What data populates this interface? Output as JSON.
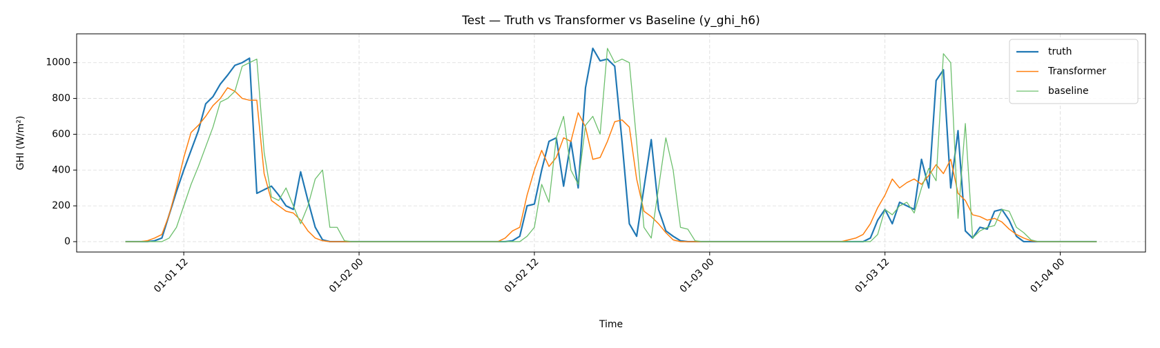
{
  "chart_data": {
    "type": "line",
    "title": "Test — Truth vs Transformer vs Baseline (y_ghi_h6)",
    "xlabel": "Time",
    "ylabel": "GHI (W/m²)",
    "x": [
      "01-01 08:00",
      "01-01 08:30",
      "01-01 09:00",
      "01-01 09:30",
      "01-01 10:00",
      "01-01 10:30",
      "01-01 11:00",
      "01-01 11:30",
      "01-01 12:00",
      "01-01 12:30",
      "01-01 13:00",
      "01-01 13:30",
      "01-01 14:00",
      "01-01 14:30",
      "01-01 15:00",
      "01-01 15:30",
      "01-01 16:00",
      "01-01 16:30",
      "01-01 17:00",
      "01-01 17:30",
      "01-01 18:00",
      "01-01 18:30",
      "01-01 19:00",
      "01-01 19:30",
      "01-01 20:00",
      "01-01 20:30",
      "01-01 21:00",
      "01-01 21:30",
      "01-01 22:00",
      "01-01 22:30",
      "01-01 23:00",
      "01-01 23:30",
      "01-02 00:00",
      "01-02 00:30",
      "01-02 01:00",
      "01-02 01:30",
      "01-02 02:00",
      "01-02 02:30",
      "01-02 03:00",
      "01-02 03:30",
      "01-02 04:00",
      "01-02 04:30",
      "01-02 05:00",
      "01-02 05:30",
      "01-02 06:00",
      "01-02 06:30",
      "01-02 07:00",
      "01-02 07:30",
      "01-02 08:00",
      "01-02 08:30",
      "01-02 09:00",
      "01-02 09:30",
      "01-02 10:00",
      "01-02 10:30",
      "01-02 11:00",
      "01-02 11:30",
      "01-02 12:00",
      "01-02 12:30",
      "01-02 13:00",
      "01-02 13:30",
      "01-02 14:00",
      "01-02 14:30",
      "01-02 15:00",
      "01-02 15:30",
      "01-02 16:00",
      "01-02 16:30",
      "01-02 17:00",
      "01-02 17:30",
      "01-02 18:00",
      "01-02 18:30",
      "01-02 19:00",
      "01-02 19:30",
      "01-02 20:00",
      "01-02 20:30",
      "01-02 21:00",
      "01-02 21:30",
      "01-02 22:00",
      "01-02 22:30",
      "01-02 23:00",
      "01-02 23:30",
      "01-03 00:00",
      "01-03 00:30",
      "01-03 01:00",
      "01-03 01:30",
      "01-03 02:00",
      "01-03 02:30",
      "01-03 03:00",
      "01-03 03:30",
      "01-03 04:00",
      "01-03 04:30",
      "01-03 05:00",
      "01-03 05:30",
      "01-03 06:00",
      "01-03 06:30",
      "01-03 07:00",
      "01-03 07:30",
      "01-03 08:00",
      "01-03 08:30",
      "01-03 09:00",
      "01-03 09:30",
      "01-03 10:00",
      "01-03 10:30",
      "01-03 11:00",
      "01-03 11:30",
      "01-03 12:00",
      "01-03 12:30",
      "01-03 13:00",
      "01-03 13:30",
      "01-03 14:00",
      "01-03 14:30",
      "01-03 15:00",
      "01-03 15:30",
      "01-03 16:00",
      "01-03 16:30",
      "01-03 17:00",
      "01-03 17:30",
      "01-03 18:00",
      "01-03 18:30",
      "01-03 19:00",
      "01-03 19:30",
      "01-03 20:00",
      "01-03 20:30",
      "01-03 21:00",
      "01-03 21:30",
      "01-03 22:00",
      "01-03 22:30",
      "01-03 23:00",
      "01-03 23:30",
      "01-04 00:00",
      "01-04 00:30",
      "01-04 01:00",
      "01-04 01:30",
      "01-04 02:00",
      "01-04 02:30"
    ],
    "series": [
      {
        "name": "truth",
        "color": "#1f77b4",
        "width": 2.2,
        "values": [
          0,
          0,
          0,
          0,
          5,
          20,
          150,
          280,
          400,
          510,
          620,
          770,
          810,
          880,
          930,
          985,
          1000,
          1025,
          270,
          290,
          310,
          260,
          200,
          180,
          390,
          230,
          80,
          10,
          0,
          0,
          0,
          0,
          0,
          0,
          0,
          0,
          0,
          0,
          0,
          0,
          0,
          0,
          0,
          0,
          0,
          0,
          0,
          0,
          0,
          0,
          0,
          0,
          0,
          5,
          30,
          200,
          210,
          400,
          560,
          580,
          310,
          560,
          300,
          860,
          1080,
          1010,
          1020,
          980,
          560,
          100,
          30,
          300,
          570,
          180,
          60,
          30,
          5,
          0,
          0,
          0,
          0,
          0,
          0,
          0,
          0,
          0,
          0,
          0,
          0,
          0,
          0,
          0,
          0,
          0,
          0,
          0,
          0,
          0,
          0,
          0,
          0,
          0,
          20,
          120,
          180,
          100,
          220,
          200,
          180,
          460,
          300,
          900,
          960,
          300,
          620,
          60,
          20,
          80,
          70,
          170,
          180,
          120,
          30,
          0,
          0,
          0,
          0,
          0,
          0,
          0,
          0,
          0,
          0,
          0
        ]
      },
      {
        "name": "Transformer",
        "color": "#ff7f0e",
        "width": 1.5,
        "values": [
          0,
          0,
          0,
          5,
          20,
          40,
          150,
          300,
          470,
          610,
          650,
          700,
          760,
          800,
          860,
          840,
          800,
          790,
          790,
          380,
          230,
          200,
          170,
          160,
          120,
          60,
          20,
          5,
          0,
          0,
          0,
          0,
          0,
          0,
          0,
          0,
          0,
          0,
          0,
          0,
          0,
          0,
          0,
          0,
          0,
          0,
          0,
          0,
          0,
          0,
          0,
          0,
          20,
          60,
          80,
          260,
          400,
          510,
          420,
          470,
          580,
          560,
          720,
          640,
          460,
          470,
          560,
          670,
          680,
          640,
          350,
          170,
          140,
          100,
          50,
          10,
          0,
          0,
          0,
          0,
          0,
          0,
          0,
          0,
          0,
          0,
          0,
          0,
          0,
          0,
          0,
          0,
          0,
          0,
          0,
          0,
          0,
          0,
          0,
          10,
          20,
          40,
          100,
          190,
          260,
          350,
          300,
          330,
          350,
          320,
          370,
          430,
          380,
          460,
          270,
          230,
          150,
          140,
          120,
          130,
          110,
          70,
          40,
          20,
          5,
          0,
          0,
          0,
          0,
          0,
          0,
          0,
          0,
          0
        ]
      },
      {
        "name": "baseline",
        "color": "#6cbf6c",
        "width": 1.3,
        "values": [
          0,
          0,
          0,
          0,
          0,
          0,
          20,
          80,
          200,
          320,
          420,
          530,
          640,
          780,
          800,
          840,
          980,
          1000,
          1020,
          500,
          250,
          230,
          300,
          200,
          100,
          200,
          350,
          400,
          80,
          80,
          5,
          0,
          0,
          0,
          0,
          0,
          0,
          0,
          0,
          0,
          0,
          0,
          0,
          0,
          0,
          0,
          0,
          0,
          0,
          0,
          0,
          0,
          0,
          0,
          0,
          30,
          80,
          320,
          220,
          580,
          700,
          400,
          320,
          650,
          700,
          600,
          1080,
          1000,
          1020,
          1000,
          560,
          80,
          20,
          300,
          580,
          400,
          80,
          70,
          5,
          0,
          0,
          0,
          0,
          0,
          0,
          0,
          0,
          0,
          0,
          0,
          0,
          0,
          0,
          0,
          0,
          0,
          0,
          0,
          0,
          0,
          0,
          0,
          0,
          40,
          180,
          150,
          200,
          220,
          160,
          300,
          410,
          340,
          1050,
          1000,
          130,
          660,
          20,
          60,
          80,
          90,
          180,
          170,
          80,
          50,
          10,
          0,
          0,
          0,
          0,
          0,
          0,
          0,
          0,
          0
        ]
      }
    ],
    "xlim": [
      "01-01 04:40",
      "01-04 05:50"
    ],
    "xticks": [
      {
        "value": "01-01 12:00",
        "label": "01-01 12"
      },
      {
        "value": "01-02 00:00",
        "label": "01-02 00"
      },
      {
        "value": "01-02 12:00",
        "label": "01-02 12"
      },
      {
        "value": "01-03 00:00",
        "label": "01-03 00"
      },
      {
        "value": "01-03 12:00",
        "label": "01-03 12"
      },
      {
        "value": "01-04 00:00",
        "label": "01-04 00"
      }
    ],
    "ylim": [
      -58,
      1161
    ],
    "yticks": [
      0,
      200,
      400,
      600,
      800,
      1000
    ],
    "grid": true,
    "legend": "upper right"
  }
}
